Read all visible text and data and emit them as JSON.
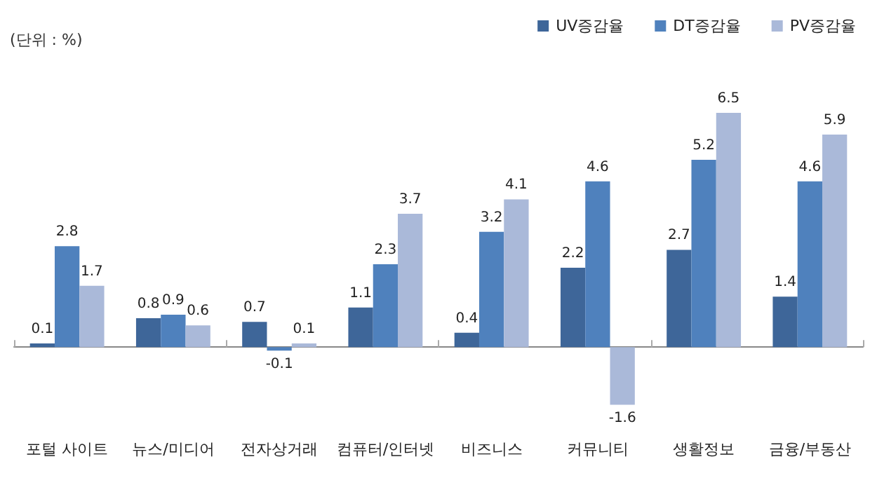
{
  "chart_data": {
    "type": "bar",
    "ylabel": "(단위 : %)",
    "categories": [
      "포털 사이트",
      "뉴스/미디어",
      "전자상거래",
      "컴퓨터/인터넷",
      "비즈니스",
      "커뮤니티",
      "생활정보",
      "금융/부동산"
    ],
    "series": [
      {
        "name": "UV증감율",
        "color": "#3e6699",
        "values": [
          0.1,
          0.8,
          0.7,
          1.1,
          0.4,
          2.2,
          2.7,
          1.4
        ]
      },
      {
        "name": "DT증감율",
        "color": "#4f81bd",
        "values": [
          2.8,
          0.9,
          -0.1,
          2.3,
          3.2,
          4.6,
          5.2,
          4.6
        ]
      },
      {
        "name": "PV증감율",
        "color": "#aab9d9",
        "values": [
          1.7,
          0.6,
          0.1,
          3.7,
          4.1,
          -1.6,
          6.5,
          5.9
        ]
      }
    ],
    "data_labels": true,
    "legend": "top right",
    "grid": false
  }
}
